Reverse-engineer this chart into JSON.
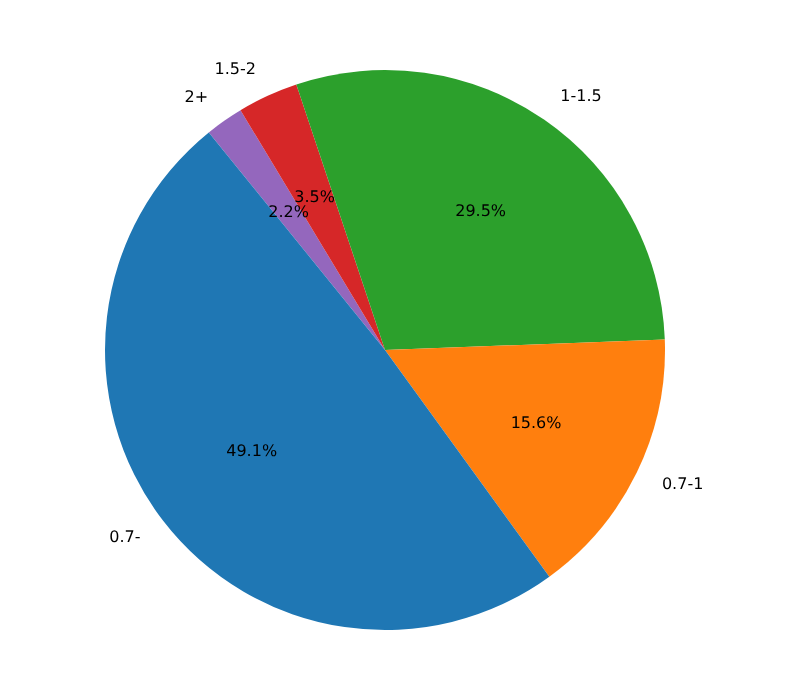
{
  "chart_data": {
    "type": "pie",
    "categories": [
      "0.7-",
      "0.7-1",
      "1-1.5",
      "1.5-2",
      "2+"
    ],
    "values": [
      49.1,
      15.6,
      29.5,
      3.5,
      2.2
    ],
    "colors": [
      "#1f77b4",
      "#ff7f0e",
      "#2ca02c",
      "#d62728",
      "#9467bd"
    ],
    "value_labels": [
      "49.1%",
      "15.6%",
      "29.5%",
      "3.5%",
      "2.2%"
    ],
    "legend": false
  }
}
